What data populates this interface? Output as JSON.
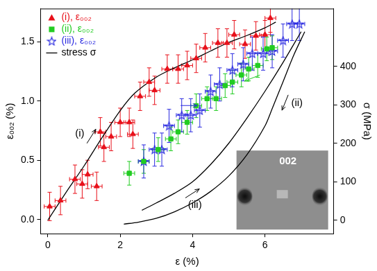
{
  "chart_data": {
    "type": "scatter",
    "x_label": "ε (%)",
    "y_label": "ε₀₀₂ (%)",
    "y2_label": "σ (MPa)",
    "xlim": [
      -0.2,
      7.9
    ],
    "xticks": [
      0,
      2,
      4,
      6
    ],
    "ylim": [
      -0.12,
      1.78
    ],
    "yticks": [
      {
        "value": 0,
        "label": "0.0"
      },
      0.5,
      {
        "value": 1,
        "label": "1.0"
      },
      1.5
    ],
    "y2lim": [
      -35,
      550
    ],
    "y2ticks": [
      0,
      100,
      200,
      300,
      400
    ],
    "grid": false,
    "legend": "upper left",
    "series": [
      {
        "name": "(i), ε₀₀₂",
        "color": "#e8101a",
        "marker": "triangle",
        "x": [
          0.05,
          0.35,
          0.75,
          0.95,
          1.1,
          1.35,
          1.45,
          1.55,
          1.75,
          2.0,
          2.25,
          2.35,
          2.55,
          2.8,
          2.95,
          3.3,
          3.6,
          3.85,
          4.1,
          4.35,
          4.7,
          4.95,
          5.15,
          5.45,
          5.75,
          6.0,
          6.15
        ],
        "values": [
          0.11,
          0.16,
          0.34,
          0.3,
          0.38,
          0.28,
          0.74,
          0.61,
          0.7,
          0.82,
          0.82,
          0.72,
          1.04,
          1.16,
          1.09,
          1.27,
          1.27,
          1.3,
          1.36,
          1.45,
          1.49,
          1.49,
          1.56,
          1.48,
          1.55,
          1.56,
          1.7
        ],
        "x_error": [
          0.15,
          0.15,
          0.15,
          0.15,
          0.15,
          0.15,
          0.15,
          0.15,
          0.15,
          0.15,
          0.15,
          0.15,
          0.15,
          0.15,
          0.15,
          0.15,
          0.15,
          0.15,
          0.15,
          0.15,
          0.15,
          0.15,
          0.15,
          0.15,
          0.15,
          0.15,
          0.15
        ],
        "y_error": [
          0.12,
          0.12,
          0.12,
          0.12,
          0.12,
          0.12,
          0.12,
          0.12,
          0.12,
          0.12,
          0.12,
          0.12,
          0.12,
          0.12,
          0.12,
          0.12,
          0.12,
          0.12,
          0.12,
          0.12,
          0.12,
          0.12,
          0.12,
          0.12,
          0.12,
          0.12,
          0.12
        ]
      },
      {
        "name": "(ii), ε₀₀₂",
        "color": "#22cc22",
        "marker": "square",
        "x": [
          2.25,
          2.65,
          3.05,
          3.4,
          3.6,
          3.85,
          4.1,
          4.4,
          4.65,
          4.9,
          5.1,
          5.35,
          5.55,
          5.8,
          6.05,
          6.2
        ],
        "values": [
          0.39,
          0.49,
          0.59,
          0.68,
          0.74,
          0.82,
          0.96,
          1.02,
          1.02,
          1.13,
          1.16,
          1.22,
          1.27,
          1.3,
          1.44,
          1.45
        ],
        "x_error": [
          0.15,
          0.15,
          0.15,
          0.15,
          0.15,
          0.15,
          0.15,
          0.15,
          0.15,
          0.15,
          0.15,
          0.15,
          0.15,
          0.15,
          0.15,
          0.15
        ],
        "y_error": [
          0.1,
          0.1,
          0.1,
          0.1,
          0.1,
          0.1,
          0.1,
          0.1,
          0.1,
          0.1,
          0.1,
          0.1,
          0.1,
          0.1,
          0.1,
          0.1
        ]
      },
      {
        "name": "(iii), ε₀₀₂",
        "color": "#2a2ae0",
        "marker": "star",
        "x": [
          2.65,
          2.95,
          3.15,
          3.35,
          3.7,
          3.95,
          4.2,
          4.5,
          4.75,
          5.1,
          5.4,
          5.65,
          5.95,
          6.2,
          6.5,
          6.75,
          6.95
        ],
        "values": [
          0.49,
          0.59,
          0.59,
          0.79,
          0.88,
          0.88,
          0.92,
          1.08,
          1.14,
          1.26,
          1.31,
          1.4,
          1.4,
          1.42,
          1.51,
          1.65,
          1.65
        ],
        "x_error": [
          0.15,
          0.15,
          0.15,
          0.15,
          0.15,
          0.15,
          0.15,
          0.15,
          0.15,
          0.15,
          0.15,
          0.15,
          0.15,
          0.15,
          0.15,
          0.15,
          0.15
        ],
        "y_error": [
          0.14,
          0.14,
          0.14,
          0.14,
          0.14,
          0.14,
          0.14,
          0.14,
          0.14,
          0.14,
          0.14,
          0.14,
          0.14,
          0.14,
          0.14,
          0.14,
          0.14
        ]
      },
      {
        "name": "stress σ",
        "type": "line",
        "axis": "y2",
        "color": "#000000",
        "line_style": "solid",
        "curves": [
          {
            "label": "(i)",
            "x": [
              0,
              0.5,
              1.0,
              1.5,
              2.0,
              2.4,
              3.0,
              3.5,
              4.0,
              4.5,
              5.0,
              5.5,
              6.0,
              6.3
            ],
            "values": [
              0,
              72,
              141,
              215,
              285,
              330,
              372,
              396,
              417,
              440,
              462,
              480,
              500,
              515
            ]
          },
          {
            "label": "(ii)",
            "x": [
              7.1,
              6.8,
              6.5,
              6.2,
              6.0,
              5.5,
              5.0,
              4.5,
              4.0,
              3.5,
              3.0,
              2.5,
              2.1
            ],
            "values": [
              490,
              430,
              360,
              290,
              245,
              170,
              115,
              75,
              45,
              22,
              5,
              -5,
              -10
            ]
          },
          {
            "label": "(iii)",
            "x": [
              2.6,
              3.0,
              3.5,
              4.0,
              4.5,
              5.0,
              5.5,
              6.0,
              6.5,
              7.0
            ],
            "values": [
              26,
              45,
              70,
              100,
              145,
              200,
              265,
              335,
              410,
              490
            ]
          }
        ]
      }
    ],
    "inset": {
      "label": "002"
    }
  }
}
